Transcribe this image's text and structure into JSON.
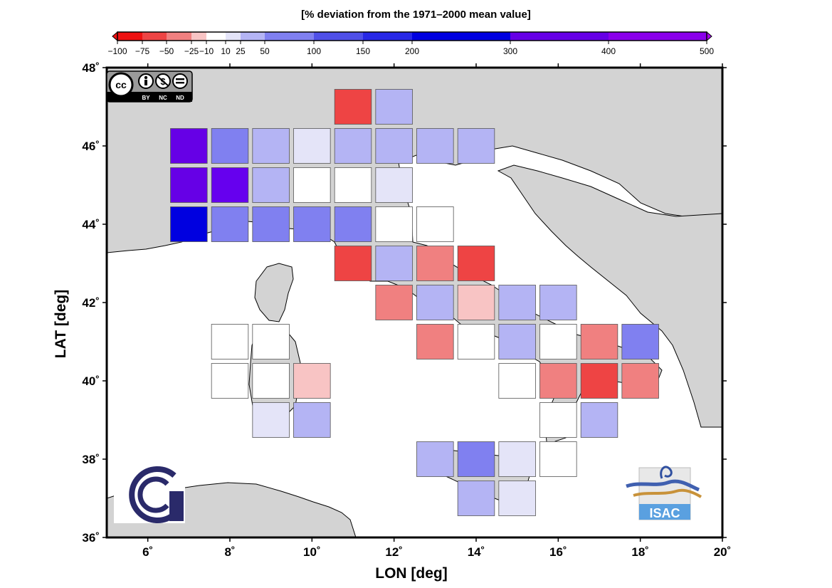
{
  "colorbar": {
    "title": "[% deviation from the 1971–2000 mean value]",
    "ticks": [
      "−100",
      "−75",
      "−50",
      "−25",
      "−10",
      "10",
      "25",
      "50",
      "100",
      "150",
      "200",
      "300",
      "400",
      "500"
    ],
    "tick_values": [
      -100,
      -75,
      -50,
      -25,
      -10,
      10,
      25,
      50,
      100,
      150,
      200,
      300,
      400,
      500
    ],
    "bin_colors": [
      "#ee1111",
      "#ee4444",
      "#f08080",
      "#f8c4c4",
      "#ffffff",
      "#e4e4f8",
      "#b4b4f4",
      "#8080f0",
      "#5050e8",
      "#2828e6",
      "#0000e0",
      "#6600e6",
      "#8a00ea",
      "#aa00ee"
    ]
  },
  "axes": {
    "xlabel": "LON [deg]",
    "ylabel": "LAT [deg]",
    "xlim": [
      5,
      20
    ],
    "ylim": [
      36,
      48
    ],
    "xticks": [
      6,
      8,
      10,
      12,
      14,
      16,
      18,
      20
    ],
    "yticks": [
      36,
      38,
      40,
      42,
      44,
      46,
      48
    ]
  },
  "logos": {
    "license": [
      "BY",
      "NC",
      "ND"
    ],
    "isac": "ISAC"
  },
  "chart_data": {
    "type": "heatmap",
    "title": "[% deviation from the 1971–2000 mean value]",
    "xlabel": "LON [deg]",
    "ylabel": "LAT [deg]",
    "xlim": [
      5,
      20
    ],
    "ylim": [
      36,
      48
    ],
    "cell_size_deg": 1,
    "cells": [
      {
        "lon": 11,
        "lat": 47,
        "color": "#ee4444"
      },
      {
        "lon": 12,
        "lat": 47,
        "color": "#b4b4f4"
      },
      {
        "lon": 7,
        "lat": 46,
        "color": "#6600e6"
      },
      {
        "lon": 8,
        "lat": 46,
        "color": "#8080f0"
      },
      {
        "lon": 9,
        "lat": 46,
        "color": "#b4b4f4"
      },
      {
        "lon": 10,
        "lat": 46,
        "color": "#e4e4f8"
      },
      {
        "lon": 11,
        "lat": 46,
        "color": "#b4b4f4"
      },
      {
        "lon": 12,
        "lat": 46,
        "color": "#b4b4f4"
      },
      {
        "lon": 13,
        "lat": 46,
        "color": "#b4b4f4"
      },
      {
        "lon": 14,
        "lat": 46,
        "color": "#b4b4f4"
      },
      {
        "lon": 7,
        "lat": 45,
        "color": "#6600e6"
      },
      {
        "lon": 8,
        "lat": 45,
        "color": "#6600ee"
      },
      {
        "lon": 9,
        "lat": 45,
        "color": "#b4b4f4"
      },
      {
        "lon": 10,
        "lat": 45,
        "color": "#ffffff"
      },
      {
        "lon": 11,
        "lat": 45,
        "color": "#ffffff"
      },
      {
        "lon": 12,
        "lat": 45,
        "color": "#e4e4f8"
      },
      {
        "lon": 7,
        "lat": 44,
        "color": "#0000e0"
      },
      {
        "lon": 8,
        "lat": 44,
        "color": "#8080f0"
      },
      {
        "lon": 9,
        "lat": 44,
        "color": "#8080f0"
      },
      {
        "lon": 10,
        "lat": 44,
        "color": "#8080f0"
      },
      {
        "lon": 11,
        "lat": 44,
        "color": "#8080f0"
      },
      {
        "lon": 12,
        "lat": 44,
        "color": "#ffffff"
      },
      {
        "lon": 13,
        "lat": 44,
        "color": "#ffffff"
      },
      {
        "lon": 11,
        "lat": 43,
        "color": "#ee4444"
      },
      {
        "lon": 12,
        "lat": 43,
        "color": "#b4b4f4"
      },
      {
        "lon": 13,
        "lat": 43,
        "color": "#f08080"
      },
      {
        "lon": 14,
        "lat": 43,
        "color": "#ee4444"
      },
      {
        "lon": 12,
        "lat": 42,
        "color": "#f08080"
      },
      {
        "lon": 13,
        "lat": 42,
        "color": "#b4b4f4"
      },
      {
        "lon": 14,
        "lat": 42,
        "color": "#f8c4c4"
      },
      {
        "lon": 15,
        "lat": 42,
        "color": "#b4b4f4"
      },
      {
        "lon": 16,
        "lat": 42,
        "color": "#b4b4f4"
      },
      {
        "lon": 8,
        "lat": 41,
        "color": "#ffffff"
      },
      {
        "lon": 9,
        "lat": 41,
        "color": "#ffffff"
      },
      {
        "lon": 13,
        "lat": 41,
        "color": "#f08080"
      },
      {
        "lon": 14,
        "lat": 41,
        "color": "#ffffff"
      },
      {
        "lon": 15,
        "lat": 41,
        "color": "#b4b4f4"
      },
      {
        "lon": 16,
        "lat": 41,
        "color": "#ffffff"
      },
      {
        "lon": 17,
        "lat": 41,
        "color": "#f08080"
      },
      {
        "lon": 18,
        "lat": 41,
        "color": "#8080f0"
      },
      {
        "lon": 8,
        "lat": 40,
        "color": "#ffffff"
      },
      {
        "lon": 9,
        "lat": 40,
        "color": "#ffffff"
      },
      {
        "lon": 10,
        "lat": 40,
        "color": "#f8c4c4"
      },
      {
        "lon": 15,
        "lat": 40,
        "color": "#ffffff"
      },
      {
        "lon": 16,
        "lat": 40,
        "color": "#f08080"
      },
      {
        "lon": 17,
        "lat": 40,
        "color": "#ee4444"
      },
      {
        "lon": 18,
        "lat": 40,
        "color": "#f08080"
      },
      {
        "lon": 9,
        "lat": 39,
        "color": "#e4e4f8"
      },
      {
        "lon": 10,
        "lat": 39,
        "color": "#b4b4f4"
      },
      {
        "lon": 16,
        "lat": 39,
        "color": "#ffffff"
      },
      {
        "lon": 17,
        "lat": 39,
        "color": "#b4b4f4"
      },
      {
        "lon": 13,
        "lat": 38,
        "color": "#b4b4f4"
      },
      {
        "lon": 14,
        "lat": 38,
        "color": "#8080f0"
      },
      {
        "lon": 15,
        "lat": 38,
        "color": "#e4e4f8"
      },
      {
        "lon": 16,
        "lat": 38,
        "color": "#ffffff"
      },
      {
        "lon": 14,
        "lat": 37,
        "color": "#b4b4f4"
      },
      {
        "lon": 15,
        "lat": 37,
        "color": "#e4e4f8"
      }
    ]
  }
}
